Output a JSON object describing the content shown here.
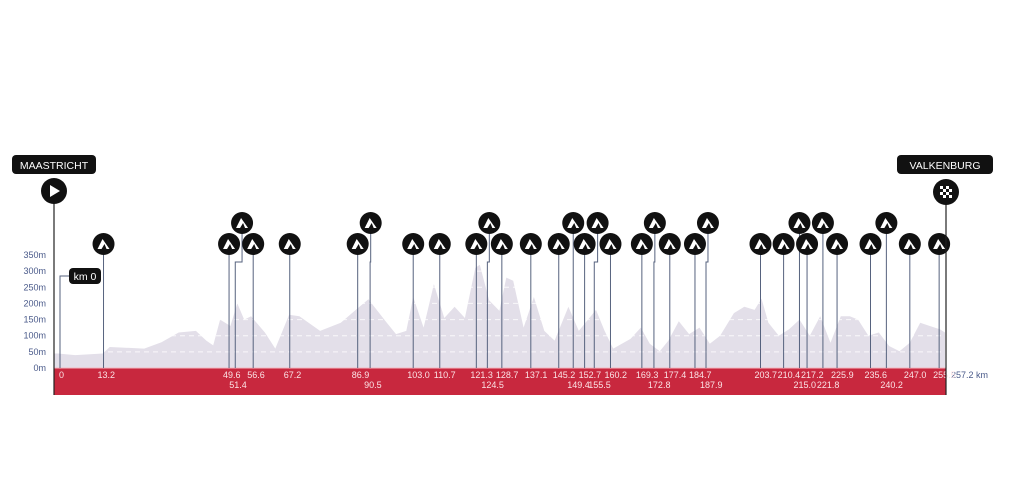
{
  "chart_data": {
    "type": "area",
    "title": "",
    "xlabel": "",
    "ylabel": "",
    "x_unit": "km",
    "xlim": [
      0,
      257.2
    ],
    "ylim": [
      0,
      350
    ],
    "y_ticks": [
      "0m",
      "50m",
      "100m",
      "150m",
      "200m",
      "250m",
      "300m",
      "350m"
    ],
    "y_tick_values": [
      0,
      50,
      100,
      150,
      200,
      250,
      300,
      350
    ],
    "grid": "dashed horizontal lines inside profile",
    "start": {
      "name": "MAASTRICHT",
      "icon": "play-icon"
    },
    "finish": {
      "name": "VALKENBURG",
      "icon": "checkered-flag-icon"
    },
    "km0_label": "km 0",
    "total_distance_label": "257.2 km",
    "start_km_label": "0",
    "climb_icon": "mountain-icon",
    "climbs_km": [
      "13.2",
      "49.6",
      "51.4",
      "56.6",
      "67.2",
      "86.9",
      "90.5",
      "103.0",
      "110.7",
      "121.3",
      "124.5",
      "128.7",
      "137.1",
      "145.2",
      "149.4",
      "152.7",
      "155.5",
      "160.2",
      "169.3",
      "172.8",
      "177.4",
      "184.7",
      "187.9",
      "203.7",
      "210.4",
      "215.0",
      "217.2",
      "221.8",
      "225.9",
      "235.6",
      "240.2",
      "247.0",
      "255.5"
    ],
    "elevation_profile": [
      [
        0,
        45
      ],
      [
        5,
        40
      ],
      [
        13,
        45
      ],
      [
        15,
        65
      ],
      [
        25,
        60
      ],
      [
        30,
        80
      ],
      [
        35,
        110
      ],
      [
        40,
        115
      ],
      [
        43,
        85
      ],
      [
        45,
        70
      ],
      [
        47,
        150
      ],
      [
        50,
        130
      ],
      [
        52,
        200
      ],
      [
        54,
        150
      ],
      [
        56,
        160
      ],
      [
        60,
        110
      ],
      [
        63,
        60
      ],
      [
        67,
        165
      ],
      [
        70,
        160
      ],
      [
        76,
        115
      ],
      [
        82,
        140
      ],
      [
        86,
        177
      ],
      [
        90,
        213
      ],
      [
        95,
        145
      ],
      [
        98,
        105
      ],
      [
        101,
        115
      ],
      [
        103,
        220
      ],
      [
        106,
        125
      ],
      [
        109,
        260
      ],
      [
        112,
        155
      ],
      [
        115,
        190
      ],
      [
        118,
        155
      ],
      [
        121,
        310
      ],
      [
        122.3,
        320
      ],
      [
        125,
        210
      ],
      [
        128,
        177
      ],
      [
        130,
        280
      ],
      [
        132,
        270
      ],
      [
        135,
        125
      ],
      [
        138,
        220
      ],
      [
        141,
        115
      ],
      [
        144,
        85
      ],
      [
        148,
        190
      ],
      [
        151,
        115
      ],
      [
        156,
        180
      ],
      [
        158.5,
        115
      ],
      [
        161,
        60
      ],
      [
        166,
        90
      ],
      [
        169,
        125
      ],
      [
        171.6,
        75
      ],
      [
        174.5,
        52
      ],
      [
        177,
        85
      ],
      [
        180,
        145
      ],
      [
        183,
        105
      ],
      [
        186,
        125
      ],
      [
        189,
        75
      ],
      [
        192,
        100
      ],
      [
        196,
        170
      ],
      [
        199,
        190
      ],
      [
        202,
        180
      ],
      [
        204,
        215
      ],
      [
        206,
        140
      ],
      [
        209,
        100
      ],
      [
        212,
        120
      ],
      [
        215,
        150
      ],
      [
        218,
        100
      ],
      [
        221,
        160
      ],
      [
        224,
        78
      ],
      [
        227,
        160
      ],
      [
        229.6,
        160
      ],
      [
        232,
        150
      ],
      [
        235,
        100
      ],
      [
        238,
        110
      ],
      [
        241,
        68
      ],
      [
        244,
        52
      ],
      [
        247,
        78
      ],
      [
        250,
        140
      ],
      [
        252.8,
        130
      ],
      [
        255.7,
        120
      ],
      [
        257.2,
        110
      ]
    ],
    "colors": {
      "profile_fill": "#e3dfe9",
      "baseline_band": "#c8283e",
      "marker": "#111111",
      "leader_line": "#56627e",
      "axis_text": "#4a5a8a"
    }
  }
}
